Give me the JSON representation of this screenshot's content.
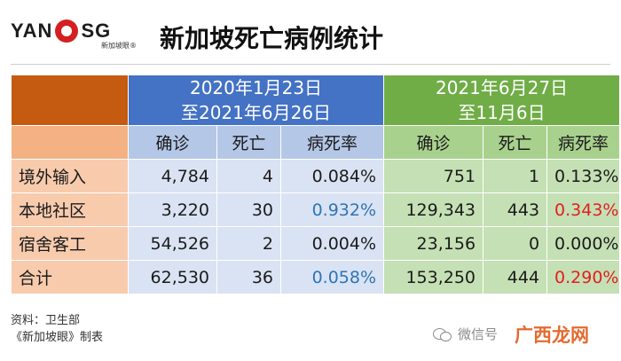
{
  "header": {
    "logo_left": "YAN",
    "logo_right": "SG",
    "logo_tagline": "新加坡眼®",
    "title": "新加坡死亡病例统计"
  },
  "table": {
    "periods": [
      {
        "line1": "2020年1月23日",
        "line2": "至2021年6月26日"
      },
      {
        "line1": "2021年6月27日",
        "line2": "至11月6日"
      }
    ],
    "columns": [
      "确诊",
      "死亡",
      "病死率",
      "确诊",
      "死亡",
      "病死率"
    ],
    "rows": [
      {
        "label": "境外输入",
        "cells": [
          "4,784",
          "4",
          "0.084%",
          "751",
          "1",
          "0.133%"
        ]
      },
      {
        "label": "本地社区",
        "cells": [
          "3,220",
          "30",
          "0.932%",
          "129,343",
          "443",
          "0.343%"
        ]
      },
      {
        "label": "宿舍客工",
        "cells": [
          "54,526",
          "2",
          "0.004%",
          "23,156",
          "0",
          "0.000%"
        ]
      },
      {
        "label": "合计",
        "cells": [
          "62,530",
          "36",
          "0.058%",
          "153,250",
          "444",
          "0.290%"
        ]
      }
    ]
  },
  "footer": {
    "source": "资料：卫生部",
    "producer": "《新加坡眼》制表"
  },
  "watermark": {
    "text": "微信号",
    "overlay": "广西龙网"
  },
  "colors": {
    "corner": "#c55a11",
    "period_2020": "#4472c4",
    "period_2021": "#70ad47",
    "highlight_blue": "#2e75b6",
    "highlight_red": "#e02020"
  }
}
